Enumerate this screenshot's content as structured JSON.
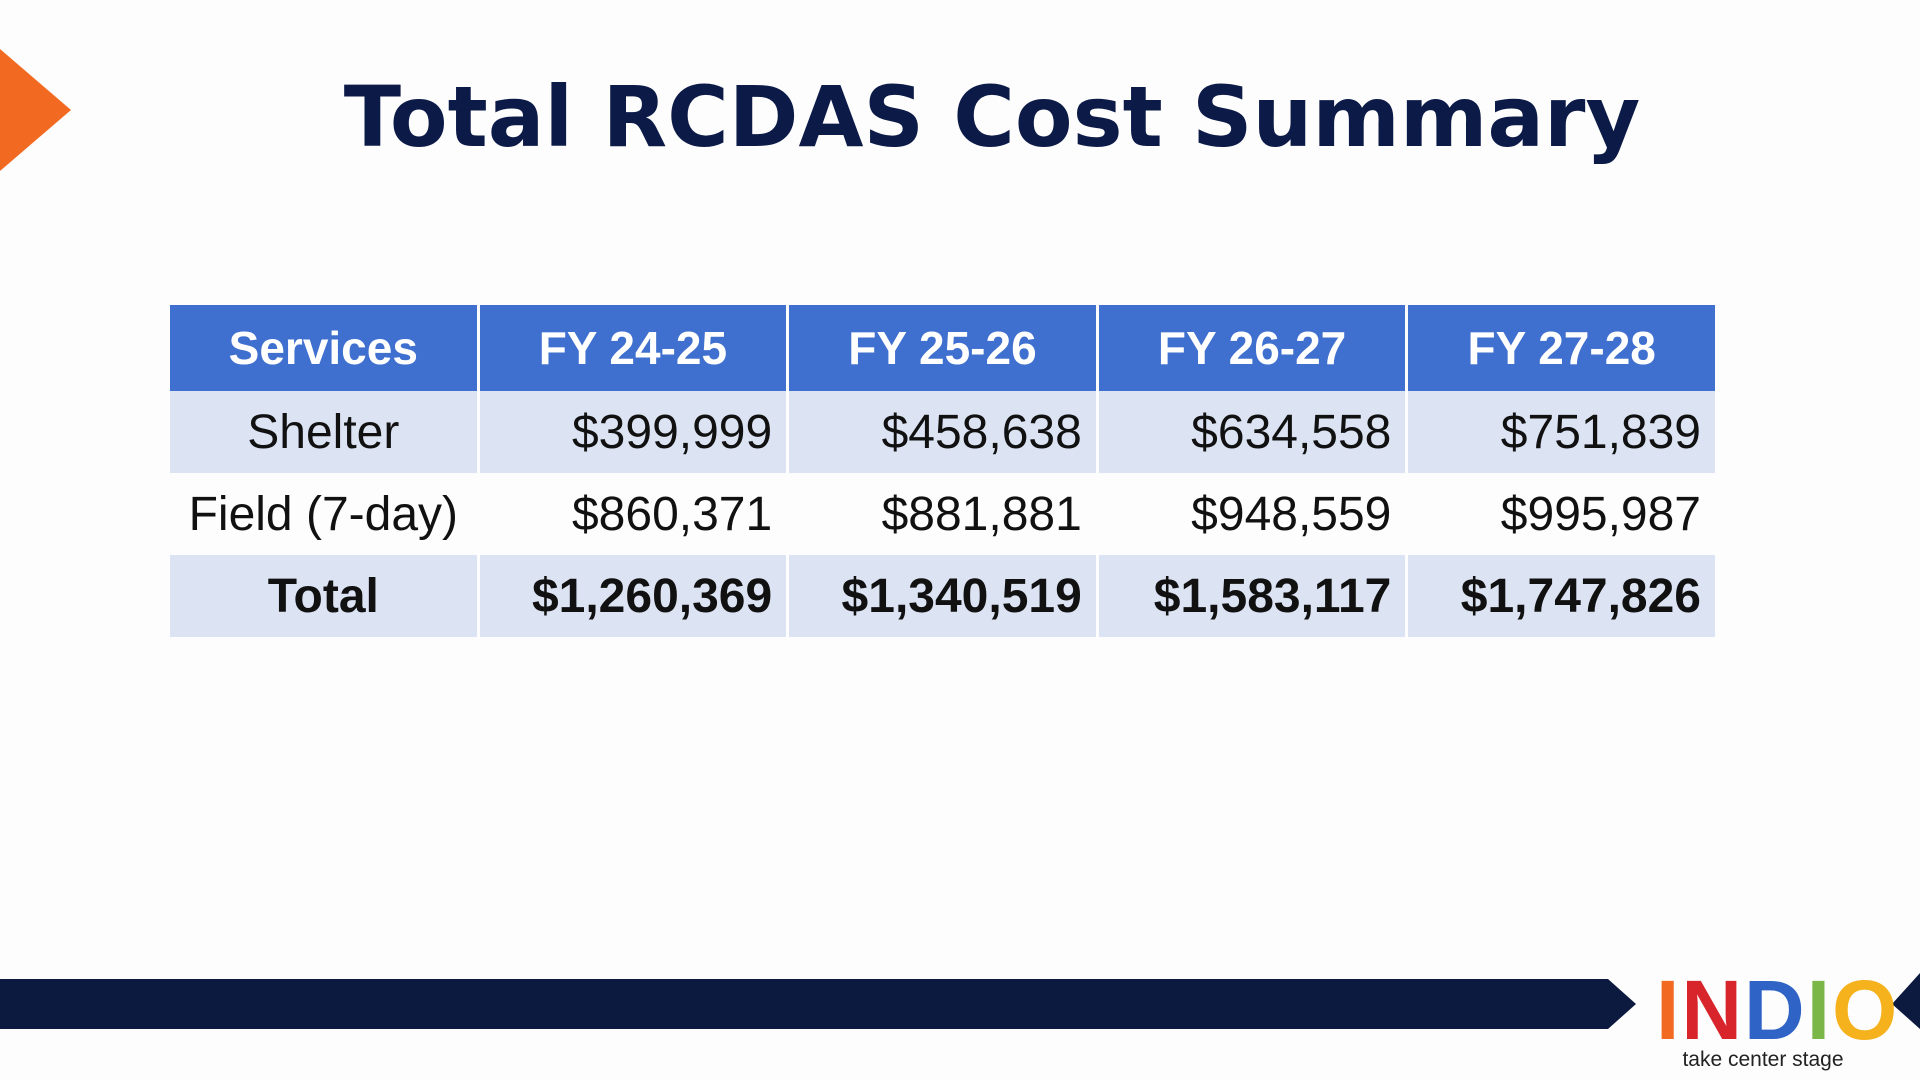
{
  "title": "Total RCDAS Cost Summary",
  "table": {
    "header": [
      "Services",
      "FY 24-25",
      "FY 25-26",
      "FY 26-27",
      "FY 27-28"
    ],
    "rows": [
      [
        "Shelter",
        "$399,999",
        "$458,638",
        "$634,558",
        "$751,839"
      ],
      [
        "Field (7-day)",
        "$860,371",
        "$881,881",
        "$948,559",
        "$995,987"
      ],
      [
        "Total",
        "$1,260,369",
        "$1,340,519",
        "$1,583,117",
        "$1,747,826"
      ]
    ]
  },
  "logo": {
    "letters": [
      "I",
      "N",
      "D",
      "I",
      "O"
    ],
    "tagline": "take center stage"
  }
}
